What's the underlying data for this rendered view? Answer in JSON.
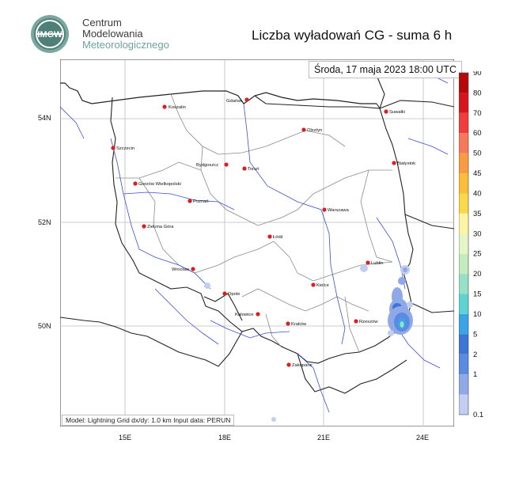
{
  "header": {
    "org_line1": "Centrum",
    "org_line2": "Modelowania",
    "org_line3": "Meteorologicznego",
    "logo_text": "IMGW",
    "title": "Liczba wyładowań CG - suma 6 h"
  },
  "map": {
    "datetime": "Środa, 17 maja 2023 18:00 UTC",
    "info": "Model: Lightning   Grid dx/dy: 1.0 km   Input data: PERUN",
    "lon_labels": [
      "15E",
      "18E",
      "21E",
      "24E"
    ],
    "lat_labels": [
      "54N",
      "52N",
      "50N"
    ],
    "cities": [
      {
        "name": "Koszalin"
      },
      {
        "name": "Gdańsk"
      },
      {
        "name": "Suwałki"
      },
      {
        "name": "Szczecin"
      },
      {
        "name": "Olsztyn"
      },
      {
        "name": "Bydgoszcz"
      },
      {
        "name": "Toruń"
      },
      {
        "name": "Białystok"
      },
      {
        "name": "Gorzów Wielkopolski"
      },
      {
        "name": "Poznań"
      },
      {
        "name": "Warszawa"
      },
      {
        "name": "Zielona Góra"
      },
      {
        "name": "Łódź"
      },
      {
        "name": "Lublin"
      },
      {
        "name": "Wrocław"
      },
      {
        "name": "Kielce"
      },
      {
        "name": "Opole"
      },
      {
        "name": "Katowice"
      },
      {
        "name": "Kraków"
      },
      {
        "name": "Rzeszów"
      },
      {
        "name": "Zakopane"
      }
    ]
  },
  "colorbar": {
    "labels": [
      "90",
      "80",
      "70",
      "60",
      "50",
      "45",
      "40",
      "35",
      "30",
      "25",
      "20",
      "15",
      "10",
      "5",
      "2",
      "1",
      "0.1"
    ],
    "colors": [
      "#b40a0a",
      "#d8141c",
      "#f03c3c",
      "#f6785a",
      "#f99b41",
      "#fbbd3a",
      "#fbd74a",
      "#fff4a3",
      "#e6f5c6",
      "#c3ebbd",
      "#96e0c8",
      "#5fd3d3",
      "#3ba4e6",
      "#3c74d8",
      "#5a8be1",
      "#8fa8e8",
      "#c3cdf2"
    ]
  }
}
